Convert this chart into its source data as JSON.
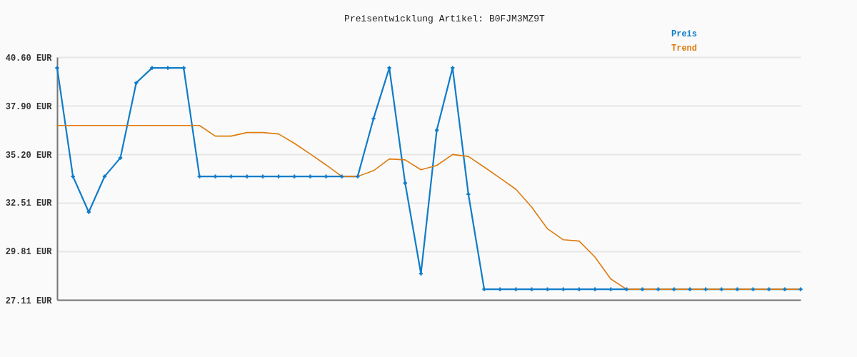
{
  "chart_data": {
    "type": "line",
    "title": "Preisentwicklung Artikel: B0FJM3MZ9T",
    "categories": [
      null,
      null,
      null,
      null,
      null,
      null,
      null,
      null,
      null,
      null,
      null,
      null,
      null,
      null,
      null,
      null,
      null,
      null,
      null,
      null,
      null,
      null,
      null,
      null,
      null,
      null,
      null,
      null,
      null,
      null,
      null,
      null,
      null,
      null,
      null,
      null,
      null,
      null,
      null,
      null,
      null,
      null,
      null,
      null,
      null,
      null,
      null,
      null
    ],
    "series": [
      {
        "name": "Preis",
        "color": "#0f7cc8",
        "marker": "cross",
        "values": [
          40.0,
          33.97,
          31.99,
          33.97,
          35.0,
          39.17,
          40.0,
          40.0,
          40.0,
          33.97,
          33.97,
          33.97,
          33.97,
          33.97,
          33.97,
          33.97,
          33.97,
          33.97,
          33.97,
          33.97,
          37.18,
          40.0,
          33.6,
          28.57,
          36.54,
          40.0,
          32.98,
          27.7,
          27.7,
          27.7,
          27.7,
          27.7,
          27.7,
          27.7,
          27.7,
          27.7,
          27.7,
          27.7,
          27.7,
          27.7,
          27.7,
          27.7,
          27.7,
          27.7,
          27.7,
          27.7,
          27.7,
          27.7
        ]
      },
      {
        "name": "Trend",
        "color": "#df7b0e",
        "marker": "none",
        "values": [
          36.8,
          36.8,
          36.8,
          36.8,
          36.8,
          36.8,
          36.8,
          36.8,
          36.8,
          36.8,
          36.21,
          36.21,
          36.41,
          36.41,
          36.33,
          35.81,
          35.22,
          34.61,
          33.97,
          33.97,
          34.29,
          34.94,
          34.89,
          34.34,
          34.58,
          35.19,
          35.08,
          34.49,
          33.88,
          33.26,
          32.27,
          31.06,
          30.45,
          30.38,
          29.49,
          28.27,
          27.7,
          27.7,
          27.7,
          27.7,
          27.7,
          27.7,
          27.7,
          27.7,
          27.7,
          27.7,
          27.7,
          27.7
        ]
      }
    ],
    "ylim": [
      27.11,
      40.6
    ],
    "yticks": [
      {
        "value": 27.11,
        "label": "27.11 EUR"
      },
      {
        "value": 29.81,
        "label": "29.81 EUR"
      },
      {
        "value": 32.51,
        "label": "32.51 EUR"
      },
      {
        "value": 35.2,
        "label": "35.20 EUR"
      },
      {
        "value": 37.9,
        "label": "37.90 EUR"
      },
      {
        "value": 40.6,
        "label": "40.60 EUR"
      }
    ],
    "tick_labels": "y",
    "grid": "y",
    "legend": "top right"
  }
}
